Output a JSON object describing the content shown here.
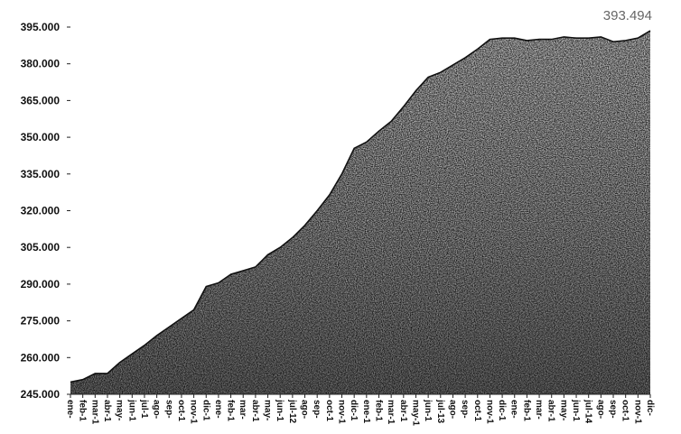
{
  "chart_data": {
    "type": "area",
    "title": "",
    "xlabel": "",
    "ylabel": "",
    "ylim": [
      245000,
      395000
    ],
    "yticks": [
      245000,
      260000,
      275000,
      290000,
      305000,
      320000,
      335000,
      350000,
      365000,
      380000,
      395000
    ],
    "ytick_labels": [
      "245.000",
      "260.000",
      "275.000",
      "290.000",
      "305.000",
      "320.000",
      "335.000",
      "350.000",
      "365.000",
      "380.000",
      "395.000"
    ],
    "end_label": "393.494",
    "grid": false,
    "legend": "none",
    "fill_texture": "grainy-dark",
    "categories": [
      "ene-",
      "feb-1",
      "mar-1",
      "abr-1",
      "may-",
      "jun-1",
      "jul-1",
      "ago-",
      "sep-",
      "oct-1",
      "nov-1",
      "dic-1",
      "ene-",
      "feb-1",
      "mar-",
      "abr-1",
      "may-",
      "jun-1",
      "jul-12",
      "ago-",
      "sep-",
      "oct-1",
      "nov-1",
      "dic-1",
      "ene-1",
      "feb-1",
      "mar-1",
      "abr-1",
      "may-1",
      "jun-1",
      "jul-13",
      "ago-",
      "sep-",
      "oct-1",
      "nov-1",
      "dic-1",
      "ene-",
      "feb-1",
      "mar-",
      "abr-1",
      "may-",
      "jun-1",
      "jul-14",
      "ago-",
      "sep-",
      "oct-1",
      "nov-1",
      "dic-"
    ],
    "values": [
      250000,
      251000,
      253500,
      253500,
      258000,
      261500,
      265000,
      269000,
      272500,
      276000,
      279500,
      289000,
      290500,
      294000,
      295500,
      297000,
      302000,
      305000,
      309000,
      314000,
      320000,
      326500,
      335000,
      345500,
      348000,
      352500,
      356500,
      362500,
      369000,
      374500,
      376500,
      379500,
      382500,
      386000,
      390000,
      390500,
      390500,
      389500,
      390000,
      390000,
      391000,
      390500,
      390500,
      391000,
      389000,
      389500,
      390500,
      393494
    ]
  }
}
